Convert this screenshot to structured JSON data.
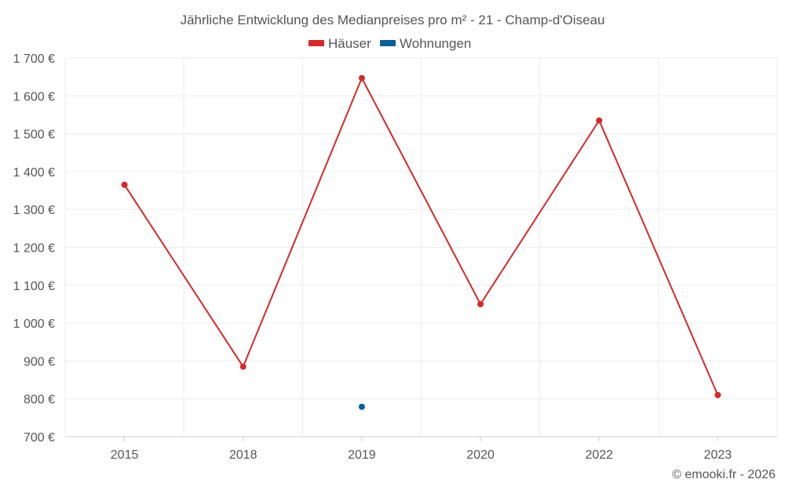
{
  "chart_data": {
    "type": "line",
    "title": "Jährliche Entwicklung des Medianpreises pro m² - 21 - Champ-d'Oiseau",
    "categories": [
      "2015",
      "2018",
      "2019",
      "2020",
      "2022",
      "2023"
    ],
    "series": [
      {
        "name": "Häuser",
        "color": "#d32a2a",
        "values": [
          1365,
          885,
          1647,
          1050,
          1535,
          810
        ]
      },
      {
        "name": "Wohnungen",
        "color": "#0f5e9c",
        "values": [
          null,
          null,
          779,
          null,
          null,
          null
        ]
      }
    ],
    "y_ticks": [
      700,
      800,
      900,
      1000,
      1100,
      1200,
      1300,
      1400,
      1500,
      1600,
      1700
    ],
    "y_tick_labels": [
      "700 €",
      "800 €",
      "900 €",
      "1 000 €",
      "1 100 €",
      "1 200 €",
      "1 300 €",
      "1 400 €",
      "1 500 €",
      "1 600 €",
      "1 700 €"
    ],
    "ylim": [
      700,
      1700
    ],
    "xlabel": "",
    "ylabel": "",
    "grid": true,
    "legend_position": "top-center"
  },
  "credit": "© emooki.fr - 2026"
}
